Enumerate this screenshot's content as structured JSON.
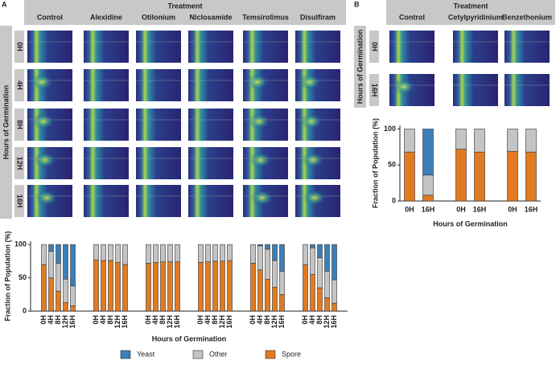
{
  "panels": [
    {
      "label": "A",
      "header": "Treatment",
      "treatments": [
        "Control",
        "Alexidine",
        "Otilonium",
        "Niclosamide",
        "Temsirolimus",
        "Disulfiram"
      ],
      "row_title": "Hours of Germination",
      "rows": [
        "0H",
        "4H",
        "8H",
        "12H",
        "16H"
      ]
    },
    {
      "label": "B",
      "header": "Treatment",
      "treatments": [
        "Control",
        "Cetylpyridinium",
        "Benzethonium"
      ],
      "row_title": "Hours of Germination",
      "rows": [
        "0H",
        "16H"
      ]
    }
  ],
  "chart_data": [
    {
      "type": "bar",
      "stacked": true,
      "y_label": "Fraction of Population (%)",
      "x_label": "Hours of Germination",
      "categories": [
        "0H",
        "4H",
        "8H",
        "12H",
        "16H",
        "0H",
        "4H",
        "8H",
        "12H",
        "16H",
        "0H",
        "4H",
        "8H",
        "12H",
        "16H",
        "0H",
        "4H",
        "8H",
        "12H",
        "16H",
        "0H",
        "4H",
        "8H",
        "12H",
        "16H",
        "0H",
        "4H",
        "8H",
        "12H",
        "16H"
      ],
      "series": [
        {
          "name": "Spore",
          "color": "#e07b22",
          "values": [
            70,
            50,
            30,
            13,
            8,
            77,
            76,
            76,
            73,
            70,
            72,
            73,
            74,
            74,
            74,
            73,
            74,
            75,
            75,
            76,
            72,
            62,
            48,
            36,
            25,
            70,
            55,
            35,
            20,
            12
          ]
        },
        {
          "name": "Other",
          "color": "#c4c4c4",
          "values": [
            30,
            40,
            42,
            35,
            30,
            23,
            24,
            24,
            27,
            30,
            28,
            27,
            26,
            26,
            26,
            27,
            26,
            25,
            25,
            24,
            28,
            36,
            45,
            40,
            35,
            30,
            40,
            45,
            40,
            35
          ]
        },
        {
          "name": "Yeast",
          "color": "#3b7fb6",
          "values": [
            0,
            10,
            28,
            52,
            62,
            0,
            0,
            0,
            0,
            0,
            0,
            0,
            0,
            0,
            0,
            0,
            0,
            0,
            0,
            0,
            0,
            2,
            7,
            24,
            40,
            0,
            5,
            20,
            40,
            53
          ]
        }
      ],
      "ylim": [
        0,
        105
      ],
      "yticks": [
        0,
        50,
        100
      ],
      "legend": true
    },
    {
      "type": "bar",
      "stacked": true,
      "y_label": "Fraction of Population (%)",
      "x_label": "Hours of Germination",
      "categories": [
        "0H",
        "16H",
        "0H",
        "16H",
        "0H",
        "16H"
      ],
      "series": [
        {
          "color": "#e07b22",
          "values": [
            68,
            8,
            72,
            68,
            69,
            68
          ]
        },
        {
          "color": "#c4c4c4",
          "values": [
            32,
            28,
            28,
            32,
            31,
            32
          ]
        },
        {
          "color": "#3b7fb6",
          "values": [
            0,
            64,
            0,
            0,
            0,
            0
          ]
        }
      ],
      "ylim": [
        0,
        105
      ],
      "yticks": [
        0,
        50,
        100
      ]
    }
  ]
}
